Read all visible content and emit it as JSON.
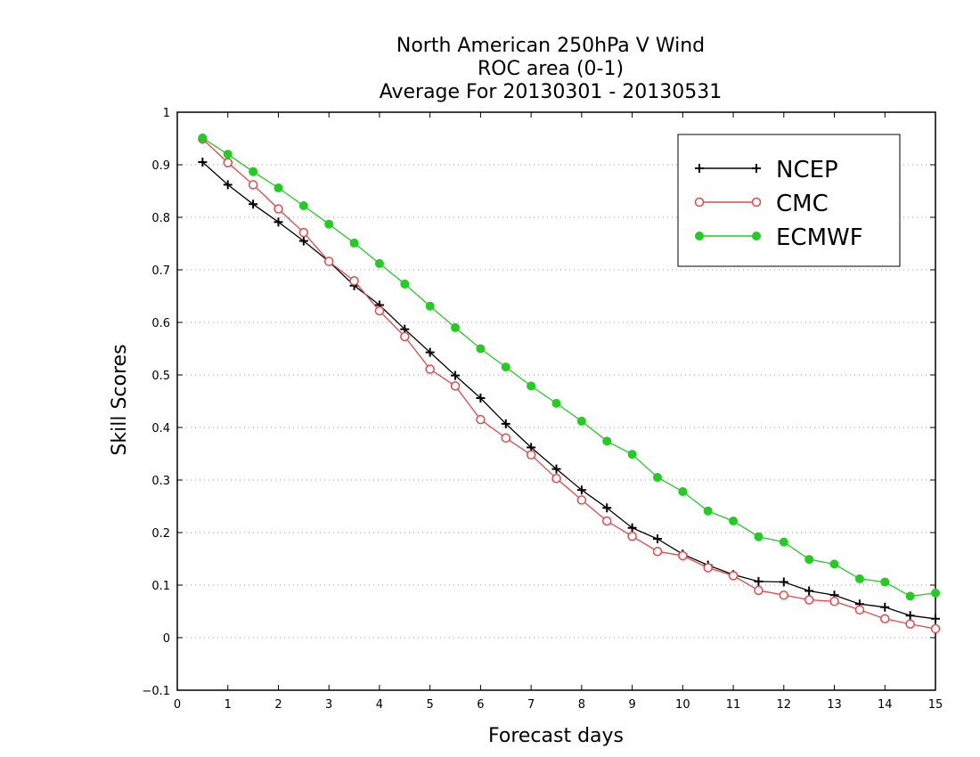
{
  "chart_data": {
    "type": "line",
    "title": [
      "North American 250hPa V Wind",
      "ROC area (0-1)",
      "Average For 20130301 - 20130531"
    ],
    "xlabel": "Forecast days",
    "ylabel": "Skill Scores",
    "xlim": [
      0,
      15
    ],
    "ylim": [
      -0.1,
      1
    ],
    "xticks": [
      0,
      1,
      2,
      3,
      4,
      5,
      6,
      7,
      8,
      9,
      10,
      11,
      12,
      13,
      14,
      15
    ],
    "xtick_labels": [
      "0",
      "1",
      "2",
      "3",
      "4",
      "5",
      "6",
      "7",
      "8",
      "9",
      "10",
      "11",
      "12",
      "13",
      "14",
      "15"
    ],
    "yticks": [
      -0.1,
      0,
      0.1,
      0.2,
      0.3,
      0.4,
      0.5,
      0.6,
      0.7,
      0.8,
      0.9,
      1
    ],
    "ytick_labels": [
      "−0.1",
      "0",
      "0.1",
      "0.2",
      "0.3",
      "0.4",
      "0.5",
      "0.6",
      "0.7",
      "0.8",
      "0.9",
      "1"
    ],
    "grid": "horizontal dotted",
    "legend_position": "top-right",
    "x": [
      0.5,
      1,
      1.5,
      2,
      2.5,
      3,
      3.5,
      4,
      4.5,
      5,
      5.5,
      6,
      6.5,
      7,
      7.5,
      8,
      8.5,
      9,
      9.5,
      10,
      10.5,
      11,
      11.5,
      12,
      12.5,
      13,
      13.5,
      14,
      14.5,
      15
    ],
    "series": [
      {
        "name": "NCEP",
        "color": "#000000",
        "marker": "plus",
        "values": [
          0.905,
          0.862,
          0.825,
          0.791,
          0.755,
          0.716,
          0.67,
          0.633,
          0.587,
          0.543,
          0.499,
          0.456,
          0.407,
          0.362,
          0.321,
          0.281,
          0.247,
          0.209,
          0.188,
          0.159,
          0.138,
          0.12,
          0.107,
          0.106,
          0.089,
          0.081,
          0.064,
          0.058,
          0.042,
          0.036
        ]
      },
      {
        "name": "CMC",
        "color": "#e24a4a",
        "marker": "open-circle",
        "values": [
          0.949,
          0.904,
          0.862,
          0.816,
          0.771,
          0.716,
          0.679,
          0.622,
          0.573,
          0.511,
          0.479,
          0.415,
          0.38,
          0.348,
          0.303,
          0.262,
          0.222,
          0.193,
          0.164,
          0.156,
          0.133,
          0.118,
          0.09,
          0.081,
          0.072,
          0.069,
          0.053,
          0.036,
          0.026,
          0.017
        ]
      },
      {
        "name": "ECMWF",
        "color": "#22cc22",
        "marker": "filled-circle",
        "values": [
          0.951,
          0.92,
          0.887,
          0.856,
          0.822,
          0.787,
          0.751,
          0.712,
          0.673,
          0.631,
          0.59,
          0.55,
          0.515,
          0.479,
          0.446,
          0.412,
          0.374,
          0.349,
          0.305,
          0.278,
          0.241,
          0.222,
          0.192,
          0.182,
          0.149,
          0.14,
          0.112,
          0.106,
          0.079,
          0.085
        ]
      }
    ]
  }
}
